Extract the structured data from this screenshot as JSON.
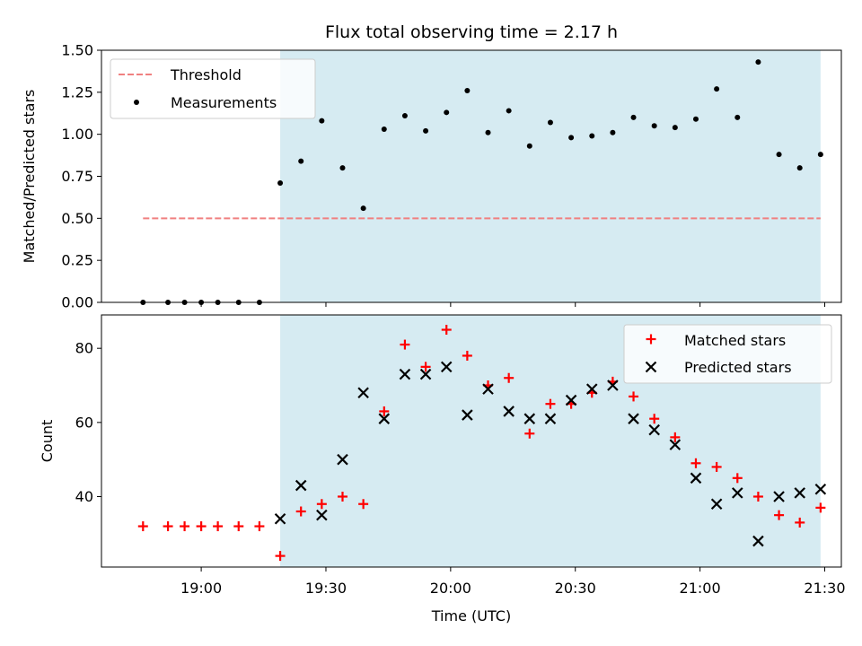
{
  "chart_data": [
    {
      "type": "scatter",
      "title": "Flux total observing time = 2.17 h",
      "xlabel": "",
      "ylabel": "Matched/Predicted stars",
      "ylim": [
        0,
        1.5
      ],
      "yticks": [
        "0.00",
        "0.25",
        "0.50",
        "0.75",
        "1.00",
        "1.25",
        "1.50"
      ],
      "x_format": "time",
      "xlim": [
        "18:36",
        "21:34"
      ],
      "highlight_span": [
        "19:19",
        "21:29"
      ],
      "highlight_color": "#add8e6",
      "threshold": {
        "name": "Threshold",
        "y": 0.5,
        "x_range": [
          "18:46",
          "21:29"
        ],
        "color": "#f08080"
      },
      "legend_position": "upper left",
      "series": [
        {
          "name": "Measurements",
          "color": "#000000",
          "x": [
            "18:46",
            "18:52",
            "18:56",
            "19:00",
            "19:04",
            "19:09",
            "19:14",
            "19:19",
            "19:24",
            "19:29",
            "19:34",
            "19:39",
            "19:44",
            "19:49",
            "19:54",
            "19:59",
            "20:04",
            "20:09",
            "20:14",
            "20:19",
            "20:24",
            "20:29",
            "20:34",
            "20:39",
            "20:44",
            "20:49",
            "20:54",
            "20:59",
            "21:04",
            "21:09",
            "21:14",
            "21:19",
            "21:24",
            "21:29"
          ],
          "y": [
            0,
            0,
            0,
            0,
            0,
            0,
            0,
            0.71,
            0.84,
            1.08,
            0.8,
            0.56,
            1.03,
            1.11,
            1.02,
            1.13,
            1.26,
            1.01,
            1.14,
            0.93,
            1.07,
            0.98,
            0.99,
            1.01,
            1.1,
            1.05,
            1.04,
            1.09,
            1.27,
            1.1,
            1.43,
            0.88,
            0.8,
            0.88
          ]
        }
      ]
    },
    {
      "type": "scatter",
      "title": "",
      "xlabel": "Time (UTC)",
      "ylabel": "Count",
      "ylim": [
        21,
        89
      ],
      "yticks": [
        "40",
        "60",
        "80"
      ],
      "xticks": [
        "19:00",
        "19:30",
        "20:00",
        "20:30",
        "21:00",
        "21:30"
      ],
      "x_format": "time",
      "xlim": [
        "18:36",
        "21:34"
      ],
      "highlight_span": [
        "19:19",
        "21:29"
      ],
      "highlight_color": "#add8e6",
      "legend_position": "upper right",
      "series": [
        {
          "name": "Matched stars",
          "color": "#ff0000",
          "marker": "plus",
          "x": [
            "18:46",
            "18:52",
            "18:56",
            "19:00",
            "19:04",
            "19:09",
            "19:14",
            "19:19",
            "19:24",
            "19:29",
            "19:34",
            "19:39",
            "19:44",
            "19:49",
            "19:54",
            "19:59",
            "20:04",
            "20:09",
            "20:14",
            "20:19",
            "20:24",
            "20:29",
            "20:34",
            "20:39",
            "20:44",
            "20:49",
            "20:54",
            "20:59",
            "21:04",
            "21:09",
            "21:14",
            "21:19",
            "21:24",
            "21:29"
          ],
          "y": [
            32,
            32,
            32,
            32,
            32,
            32,
            32,
            24,
            36,
            38,
            40,
            38,
            63,
            81,
            75,
            85,
            78,
            70,
            72,
            57,
            65,
            65,
            68,
            71,
            67,
            61,
            56,
            49,
            48,
            45,
            40,
            35,
            33,
            37
          ]
        },
        {
          "name": "Predicted stars",
          "color": "#000000",
          "marker": "x",
          "x": [
            "19:19",
            "19:24",
            "19:29",
            "19:34",
            "19:39",
            "19:44",
            "19:49",
            "19:54",
            "19:59",
            "20:04",
            "20:09",
            "20:14",
            "20:19",
            "20:24",
            "20:29",
            "20:34",
            "20:39",
            "20:44",
            "20:49",
            "20:54",
            "20:59",
            "21:04",
            "21:09",
            "21:14",
            "21:19",
            "21:24",
            "21:29"
          ],
          "y": [
            34,
            43,
            35,
            50,
            68,
            61,
            73,
            73,
            75,
            62,
            69,
            63,
            61,
            61,
            66,
            69,
            70,
            61,
            58,
            54,
            45,
            38,
            41,
            28,
            40,
            41,
            42
          ]
        }
      ]
    }
  ]
}
